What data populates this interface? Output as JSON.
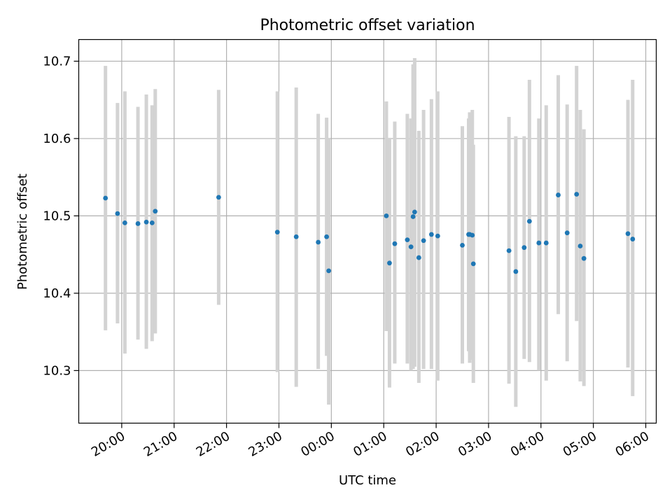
{
  "chart_data": {
    "type": "scatter",
    "title": "Photometric offset variation",
    "xlabel": "UTC time",
    "ylabel": "Photometric offset",
    "x_unit": "hours",
    "xlim": [
      -0.82,
      10.2
    ],
    "ylim": [
      10.232,
      10.728
    ],
    "grid": true,
    "x_ticks": [
      {
        "value": 0,
        "label": "20:00"
      },
      {
        "value": 1,
        "label": "21:00"
      },
      {
        "value": 2,
        "label": "22:00"
      },
      {
        "value": 3,
        "label": "23:00"
      },
      {
        "value": 4,
        "label": "00:00"
      },
      {
        "value": 5,
        "label": "01:00"
      },
      {
        "value": 6,
        "label": "02:00"
      },
      {
        "value": 7,
        "label": "03:00"
      },
      {
        "value": 8,
        "label": "04:00"
      },
      {
        "value": 9,
        "label": "05:00"
      },
      {
        "value": 10,
        "label": "06:00"
      }
    ],
    "y_ticks": [
      {
        "value": 10.3,
        "label": "10.3"
      },
      {
        "value": 10.4,
        "label": "10.4"
      },
      {
        "value": 10.5,
        "label": "10.5"
      },
      {
        "value": 10.6,
        "label": "10.6"
      },
      {
        "value": 10.7,
        "label": "10.7"
      }
    ],
    "colors": {
      "points": "#1f77b4",
      "errorbars": "#d3d3d3",
      "grid": "#b0b0b0"
    },
    "series": [
      {
        "x": [
          -0.31,
          -0.08,
          0.06,
          0.31,
          0.47,
          0.58,
          0.64,
          1.85,
          2.97,
          3.33,
          3.75,
          3.91,
          3.95,
          5.05,
          5.11,
          5.21,
          5.45,
          5.52,
          5.59,
          5.56,
          5.67,
          5.76,
          5.91,
          6.03,
          6.5,
          6.62,
          6.64,
          6.69,
          6.71,
          7.39,
          7.52,
          7.68,
          7.78,
          7.96,
          8.1,
          8.33,
          8.5,
          8.68,
          8.75,
          8.82,
          9.66,
          9.75
        ],
        "y": [
          10.523,
          10.503,
          10.491,
          10.49,
          10.492,
          10.491,
          10.506,
          10.524,
          10.479,
          10.473,
          10.466,
          10.473,
          10.429,
          10.5,
          10.439,
          10.464,
          10.469,
          10.46,
          10.505,
          10.499,
          10.446,
          10.468,
          10.476,
          10.474,
          10.462,
          10.476,
          10.476,
          10.475,
          10.438,
          10.455,
          10.428,
          10.459,
          10.493,
          10.465,
          10.465,
          10.527,
          10.478,
          10.528,
          10.461,
          10.445,
          10.477,
          10.47
        ],
        "err_low": [
          10.352,
          10.361,
          10.322,
          10.34,
          10.328,
          10.338,
          10.348,
          10.385,
          10.298,
          10.279,
          10.302,
          10.319,
          10.256,
          10.351,
          10.278,
          10.309,
          10.309,
          10.3,
          10.305,
          10.302,
          10.284,
          10.302,
          10.302,
          10.287,
          10.309,
          10.325,
          10.31,
          10.314,
          10.284,
          10.283,
          10.253,
          10.315,
          10.311,
          10.3,
          10.287,
          10.373,
          10.312,
          10.364,
          10.286,
          10.28,
          10.304,
          10.267
        ],
        "err_high": [
          10.694,
          10.646,
          10.661,
          10.641,
          10.657,
          10.643,
          10.664,
          10.663,
          10.661,
          10.666,
          10.632,
          10.627,
          10.601,
          10.648,
          10.601,
          10.622,
          10.632,
          10.626,
          10.704,
          10.696,
          10.61,
          10.637,
          10.651,
          10.661,
          10.616,
          10.626,
          10.634,
          10.637,
          10.592,
          10.628,
          10.603,
          10.603,
          10.676,
          10.626,
          10.643,
          10.682,
          10.644,
          10.694,
          10.637,
          10.612,
          10.65,
          10.676
        ]
      }
    ]
  }
}
